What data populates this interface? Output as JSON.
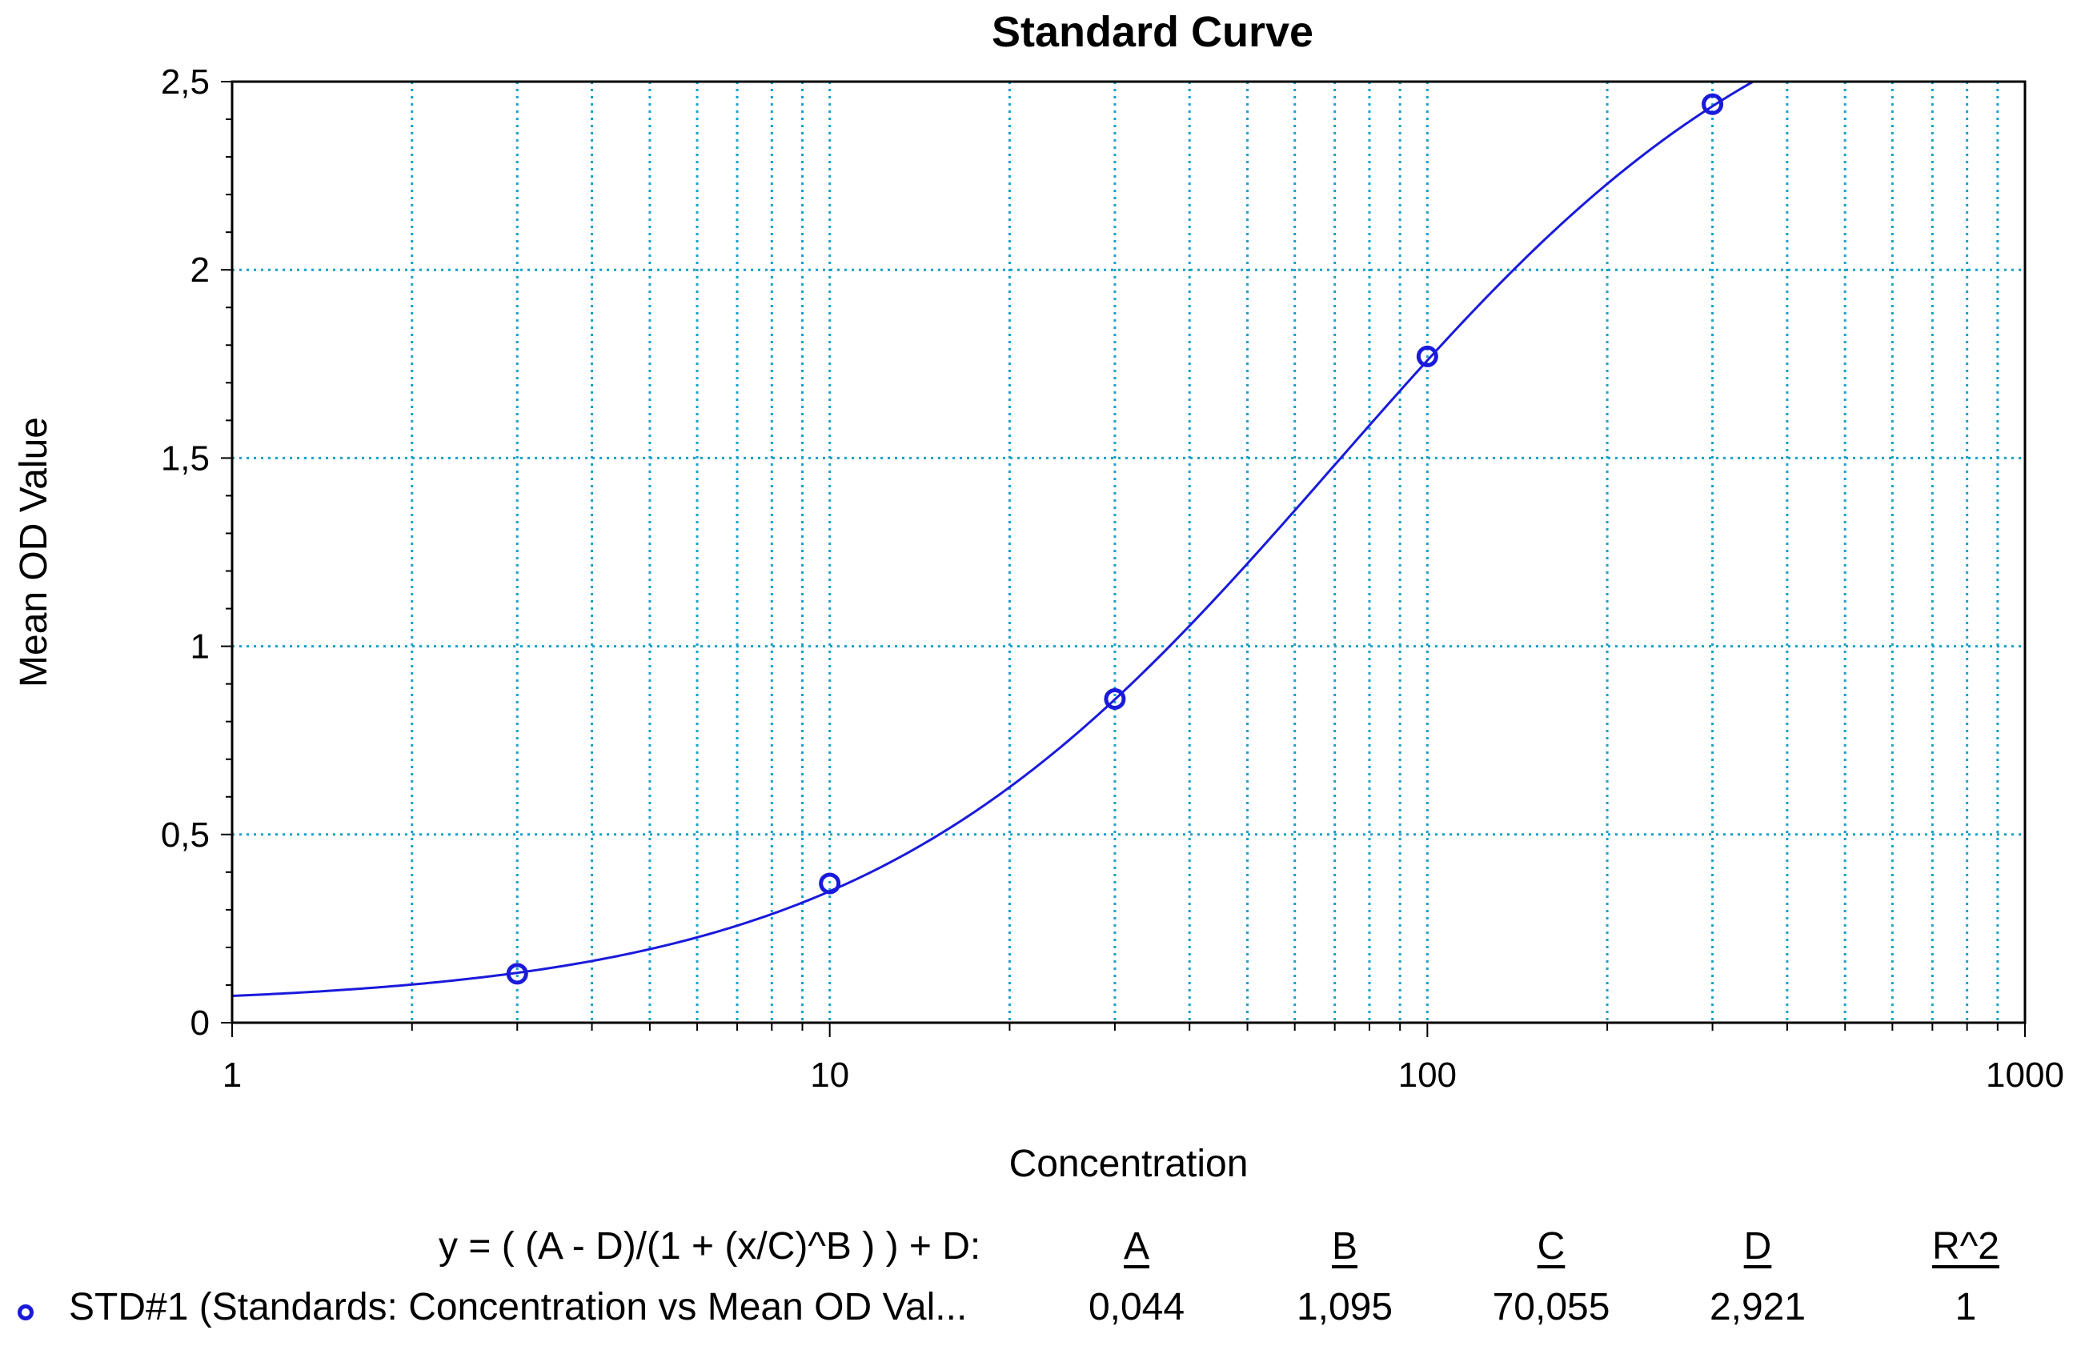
{
  "chart_data": {
    "type": "scatter",
    "title": "Standard Curve",
    "xlabel": "Concentration",
    "ylabel": "Mean OD Value",
    "x_scale": "log",
    "xlim": [
      1,
      1000
    ],
    "ylim": [
      0,
      2.5
    ],
    "x_ticks": [
      1,
      10,
      100,
      1000
    ],
    "x_tick_labels": [
      "1",
      "10",
      "100",
      "1000"
    ],
    "y_ticks": [
      0,
      0.5,
      1,
      1.5,
      2,
      2.5
    ],
    "y_tick_labels": [
      "0",
      "0,5",
      "1",
      "1,5",
      "2",
      "2,5"
    ],
    "grid": true,
    "colors": {
      "series": "#1a1adc",
      "grid": "#1aa0c8",
      "axis": "#000000"
    },
    "series": [
      {
        "name": "STD#1 (Standards: Concentration vs Mean OD Val...",
        "marker": "circle",
        "x": [
          3,
          10,
          30,
          100,
          300
        ],
        "y": [
          0.13,
          0.37,
          0.86,
          1.77,
          2.44
        ]
      }
    ],
    "fit": {
      "equation": "y = ( (A - D)/(1 + (x/C)^B ) ) + D:",
      "A": 0.044,
      "B": 1.095,
      "C": 70.055,
      "D": 2.921
    }
  },
  "legend": {
    "equation": "y = ( (A - D)/(1 + (x/C)^B ) ) + D:",
    "headers": [
      "A",
      "B",
      "C",
      "D",
      "R^2"
    ],
    "series_label": "STD#1 (Standards: Concentration vs Mean OD Val...",
    "values": [
      "0,044",
      "1,095",
      "70,055",
      "2,921",
      "1"
    ]
  }
}
